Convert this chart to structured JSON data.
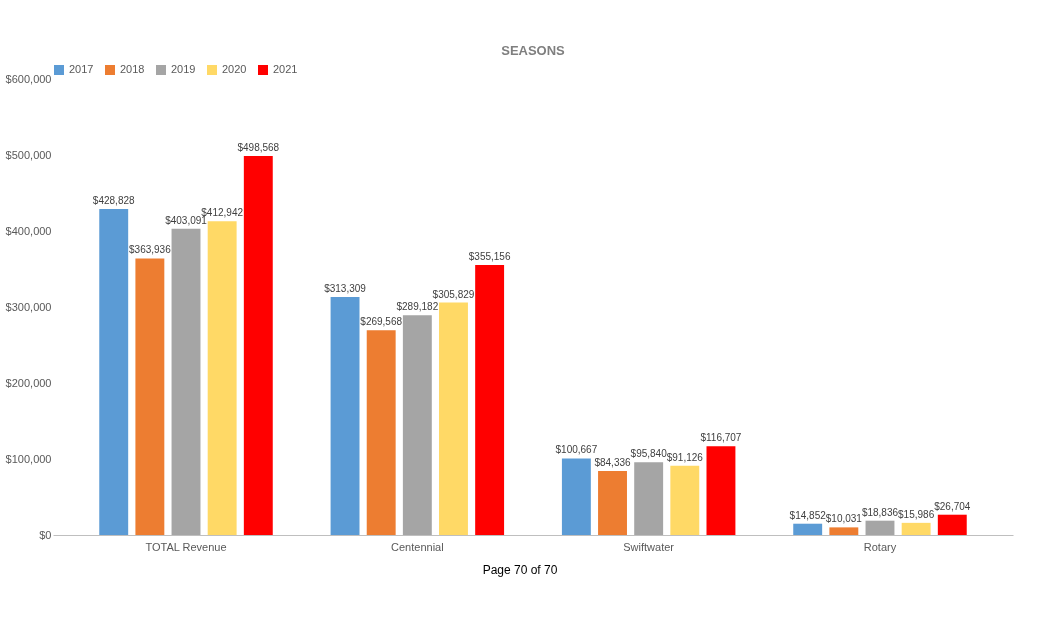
{
  "chart_data": {
    "type": "bar",
    "title": "SEASONS",
    "categories": [
      "TOTAL Revenue",
      "Centennial",
      "Swiftwater",
      "Rotary"
    ],
    "series": [
      {
        "name": "2017",
        "color": "#5b9bd5",
        "values": [
          428828,
          313309,
          100667,
          14852
        ],
        "value_labels": [
          "$428,828",
          "$313,309",
          "$100,667",
          "$14,852"
        ]
      },
      {
        "name": "2018",
        "color": "#ed7d31",
        "values": [
          363936,
          269568,
          84336,
          10031
        ],
        "value_labels": [
          "$363,936",
          "$269,568",
          "$84,336",
          "$10,031"
        ]
      },
      {
        "name": "2019",
        "color": "#a5a5a5",
        "values": [
          403091,
          289182,
          95840,
          18836
        ],
        "value_labels": [
          "$403,091",
          "$289,182",
          "$95,840",
          "$18,836"
        ]
      },
      {
        "name": "2020",
        "color": "#ffd966",
        "values": [
          412942,
          305829,
          91126,
          15986
        ],
        "value_labels": [
          "$412,942",
          "$305,829",
          "$91,126",
          "$15,986"
        ]
      },
      {
        "name": "2021",
        "color": "#ff0000",
        "values": [
          498568,
          355156,
          116707,
          26704
        ],
        "value_labels": [
          "$498,568",
          "$355,156",
          "$116,707",
          "$26,704"
        ]
      }
    ],
    "ylim": [
      0,
      600000
    ],
    "yticks": [
      {
        "value": 0,
        "label": "$0"
      },
      {
        "value": 100000,
        "label": "$100,000"
      },
      {
        "value": 200000,
        "label": "$200,000"
      },
      {
        "value": 300000,
        "label": "$300,000"
      },
      {
        "value": 400000,
        "label": "$400,000"
      },
      {
        "value": 500000,
        "label": "$500,000"
      },
      {
        "value": 600000,
        "label": "$600,000"
      }
    ],
    "grid": false,
    "legend": "top",
    "annotations": [
      "Page 70 of 70"
    ]
  }
}
